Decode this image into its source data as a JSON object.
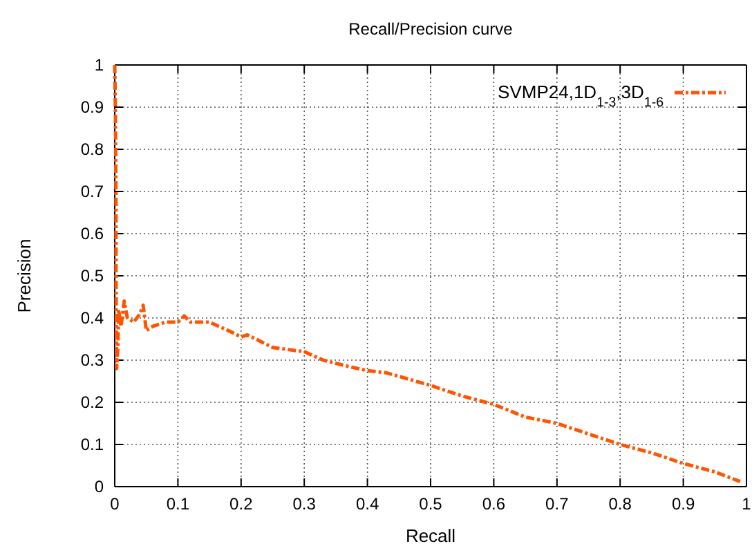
{
  "chart_data": {
    "type": "line",
    "title": "Recall/Precision curve",
    "xlabel": "Recall",
    "ylabel": "Precision",
    "xlim": [
      0,
      1
    ],
    "ylim": [
      0,
      1
    ],
    "xticks": [
      0,
      0.1,
      0.2,
      0.3,
      0.4,
      0.5,
      0.6,
      0.7,
      0.8,
      0.9,
      1
    ],
    "yticks": [
      0,
      0.1,
      0.2,
      0.3,
      0.4,
      0.5,
      0.6,
      0.7,
      0.8,
      0.9,
      1
    ],
    "grid": true,
    "legend": "top right",
    "line_style": "dashed",
    "marker": "none",
    "series": [
      {
        "name": "SVMP24,1D$_{1-3}$,3D$_{1-6}$",
        "color": "#ff5500",
        "x": [
          0,
          0.001,
          0.002,
          0.002,
          0.003,
          0.005,
          0.006,
          0.01,
          0.015,
          0.02,
          0.03,
          0.04,
          0.045,
          0.05,
          0.06,
          0.08,
          0.1,
          0.11,
          0.12,
          0.15,
          0.18,
          0.2,
          0.21,
          0.25,
          0.3,
          0.33,
          0.37,
          0.4,
          0.43,
          0.5,
          0.55,
          0.6,
          0.65,
          0.7,
          0.75,
          0.8,
          0.85,
          0.9,
          0.95,
          0.99
        ],
        "values": [
          1,
          0.9,
          0.67,
          0.5,
          0.28,
          0.33,
          0.42,
          0.38,
          0.44,
          0.4,
          0.39,
          0.41,
          0.43,
          0.37,
          0.38,
          0.39,
          0.39,
          0.405,
          0.39,
          0.39,
          0.37,
          0.355,
          0.36,
          0.33,
          0.32,
          0.3,
          0.285,
          0.275,
          0.27,
          0.24,
          0.215,
          0.195,
          0.165,
          0.15,
          0.125,
          0.1,
          0.08,
          0.055,
          0.035,
          0.012
        ]
      }
    ]
  }
}
